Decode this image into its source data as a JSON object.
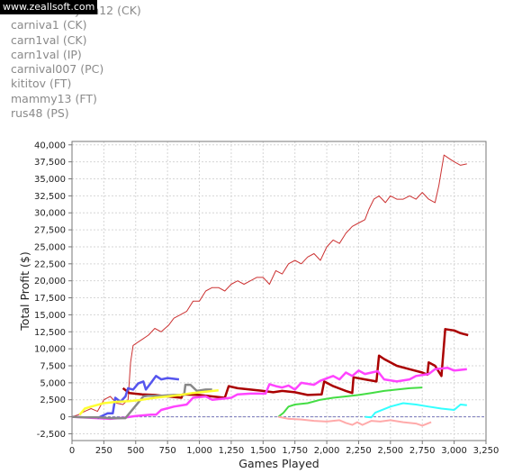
{
  "watermark": "www.zeallsoft.com",
  "legend": [
    "mike Donnlydm12 (CK)",
    "carniva1 (CK)",
    "carn1val (CK)",
    "carn1val (IP)",
    "carnival007 (PC)",
    "kititov (FT)",
    "mammy13 (FT)",
    "rus48 (PS)"
  ],
  "chart_data": {
    "type": "line",
    "title": "",
    "xlabel": "Games Played",
    "ylabel": "Total Profit ($)",
    "xlim": [
      0,
      3250
    ],
    "ylim": [
      -3500,
      40500
    ],
    "xticks": [
      "0",
      "250",
      "500",
      "750",
      "1,000",
      "1,250",
      "1,500",
      "1,750",
      "2,000",
      "2,250",
      "2,500",
      "2,750",
      "3,000",
      "3,250"
    ],
    "yticks": [
      "-2,500",
      "0",
      "2,500",
      "5,000",
      "7,500",
      "10,000",
      "12,500",
      "15,000",
      "17,500",
      "20,000",
      "22,500",
      "25,000",
      "27,500",
      "30,000",
      "32,500",
      "35,000",
      "37,500",
      "40,000"
    ],
    "grid": true,
    "zero_line": true,
    "series": [
      {
        "color": "#cc3333",
        "width": 1,
        "points": [
          [
            0,
            0
          ],
          [
            50,
            300
          ],
          [
            100,
            800
          ],
          [
            150,
            1200
          ],
          [
            200,
            800
          ],
          [
            250,
            2500
          ],
          [
            300,
            3000
          ],
          [
            350,
            2000
          ],
          [
            400,
            1800
          ],
          [
            440,
            2500
          ],
          [
            460,
            8000
          ],
          [
            480,
            10500
          ],
          [
            520,
            11000
          ],
          [
            560,
            11500
          ],
          [
            600,
            12000
          ],
          [
            650,
            13000
          ],
          [
            700,
            12500
          ],
          [
            760,
            13500
          ],
          [
            800,
            14500
          ],
          [
            850,
            15000
          ],
          [
            900,
            15500
          ],
          [
            950,
            17000
          ],
          [
            1000,
            17000
          ],
          [
            1050,
            18500
          ],
          [
            1100,
            19000
          ],
          [
            1150,
            19000
          ],
          [
            1200,
            18500
          ],
          [
            1250,
            19500
          ],
          [
            1300,
            20000
          ],
          [
            1350,
            19500
          ],
          [
            1400,
            20000
          ],
          [
            1450,
            20500
          ],
          [
            1500,
            20500
          ],
          [
            1550,
            19500
          ],
          [
            1600,
            21500
          ],
          [
            1650,
            21000
          ],
          [
            1700,
            22500
          ],
          [
            1750,
            23000
          ],
          [
            1800,
            22500
          ],
          [
            1850,
            23500
          ],
          [
            1900,
            24000
          ],
          [
            1950,
            23000
          ],
          [
            2000,
            25000
          ],
          [
            2050,
            26000
          ],
          [
            2100,
            25500
          ],
          [
            2150,
            27000
          ],
          [
            2200,
            28000
          ],
          [
            2250,
            28500
          ],
          [
            2300,
            29000
          ],
          [
            2330,
            30500
          ],
          [
            2370,
            32000
          ],
          [
            2410,
            32500
          ],
          [
            2460,
            31500
          ],
          [
            2500,
            32500
          ],
          [
            2550,
            32000
          ],
          [
            2600,
            32000
          ],
          [
            2650,
            32500
          ],
          [
            2700,
            32000
          ],
          [
            2750,
            33000
          ],
          [
            2800,
            32000
          ],
          [
            2850,
            31500
          ],
          [
            2880,
            34000
          ],
          [
            2920,
            38500
          ],
          [
            2960,
            38000
          ],
          [
            3000,
            37500
          ],
          [
            3050,
            37000
          ],
          [
            3100,
            37200
          ]
        ]
      },
      {
        "color": "#aa0000",
        "width": 2.5,
        "points": [
          [
            400,
            4200
          ],
          [
            450,
            3500
          ],
          [
            550,
            3300
          ],
          [
            650,
            3200
          ],
          [
            750,
            3000
          ],
          [
            860,
            2800
          ],
          [
            870,
            3300
          ],
          [
            1000,
            3200
          ],
          [
            1100,
            3000
          ],
          [
            1200,
            2800
          ],
          [
            1230,
            4500
          ],
          [
            1300,
            4200
          ],
          [
            1400,
            4000
          ],
          [
            1500,
            3800
          ],
          [
            1580,
            3600
          ],
          [
            1650,
            3800
          ],
          [
            1750,
            3600
          ],
          [
            1850,
            3200
          ],
          [
            1960,
            3300
          ],
          [
            1980,
            5200
          ],
          [
            2050,
            4500
          ],
          [
            2150,
            3800
          ],
          [
            2200,
            3500
          ],
          [
            2210,
            5800
          ],
          [
            2300,
            5500
          ],
          [
            2390,
            5200
          ],
          [
            2410,
            9000
          ],
          [
            2450,
            8500
          ],
          [
            2550,
            7500
          ],
          [
            2650,
            7000
          ],
          [
            2750,
            6500
          ],
          [
            2790,
            6200
          ],
          [
            2800,
            8000
          ],
          [
            2850,
            7500
          ],
          [
            2900,
            6000
          ],
          [
            2930,
            12900
          ],
          [
            3000,
            12700
          ],
          [
            3050,
            12300
          ],
          [
            3110,
            12000
          ]
        ]
      },
      {
        "color": "#ff44ff",
        "width": 2.5,
        "points": [
          [
            0,
            0
          ],
          [
            200,
            -200
          ],
          [
            300,
            -300
          ],
          [
            400,
            -150
          ],
          [
            500,
            100
          ],
          [
            620,
            300
          ],
          [
            660,
            300
          ],
          [
            700,
            1000
          ],
          [
            800,
            1500
          ],
          [
            900,
            1800
          ],
          [
            950,
            2800
          ],
          [
            1050,
            3000
          ],
          [
            1100,
            2500
          ],
          [
            1250,
            2800
          ],
          [
            1300,
            3300
          ],
          [
            1400,
            3400
          ],
          [
            1520,
            3400
          ],
          [
            1550,
            4800
          ],
          [
            1600,
            4500
          ],
          [
            1650,
            4300
          ],
          [
            1700,
            4600
          ],
          [
            1750,
            4000
          ],
          [
            1800,
            5000
          ],
          [
            1900,
            4700
          ],
          [
            1950,
            5300
          ],
          [
            2050,
            6000
          ],
          [
            2100,
            5500
          ],
          [
            2150,
            6500
          ],
          [
            2200,
            6000
          ],
          [
            2250,
            6800
          ],
          [
            2300,
            6300
          ],
          [
            2400,
            6700
          ],
          [
            2450,
            5500
          ],
          [
            2550,
            5200
          ],
          [
            2650,
            5500
          ],
          [
            2700,
            6000
          ],
          [
            2800,
            6300
          ],
          [
            2850,
            7000
          ],
          [
            2950,
            7200
          ],
          [
            3000,
            6800
          ],
          [
            3100,
            7000
          ]
        ]
      },
      {
        "color": "#44dd44",
        "width": 2,
        "points": [
          [
            1620,
            0
          ],
          [
            1660,
            600
          ],
          [
            1700,
            1500
          ],
          [
            1750,
            1800
          ],
          [
            1850,
            2000
          ],
          [
            1950,
            2500
          ],
          [
            2050,
            2800
          ],
          [
            2150,
            3000
          ],
          [
            2250,
            3200
          ],
          [
            2350,
            3500
          ],
          [
            2450,
            3800
          ],
          [
            2550,
            4000
          ],
          [
            2650,
            4200
          ],
          [
            2750,
            4300
          ]
        ]
      },
      {
        "color": "#33ffff",
        "width": 2,
        "points": [
          [
            2300,
            0
          ],
          [
            2350,
            -100
          ],
          [
            2380,
            600
          ],
          [
            2420,
            900
          ],
          [
            2500,
            1500
          ],
          [
            2600,
            2000
          ],
          [
            2700,
            1800
          ],
          [
            2800,
            1500
          ],
          [
            2900,
            1200
          ],
          [
            3000,
            1000
          ],
          [
            3050,
            1800
          ],
          [
            3100,
            1700
          ]
        ]
      },
      {
        "color": "#ffaaaa",
        "width": 2,
        "points": [
          [
            1620,
            0
          ],
          [
            1700,
            -300
          ],
          [
            1800,
            -400
          ],
          [
            1900,
            -600
          ],
          [
            2000,
            -700
          ],
          [
            2100,
            -500
          ],
          [
            2150,
            -900
          ],
          [
            2200,
            -1200
          ],
          [
            2240,
            -800
          ],
          [
            2280,
            -1200
          ],
          [
            2350,
            -600
          ],
          [
            2420,
            -700
          ],
          [
            2500,
            -500
          ],
          [
            2600,
            -800
          ],
          [
            2700,
            -1000
          ],
          [
            2750,
            -1300
          ],
          [
            2820,
            -800
          ]
        ]
      },
      {
        "color": "#5555ee",
        "width": 2.5,
        "points": [
          [
            200,
            -200
          ],
          [
            280,
            500
          ],
          [
            320,
            500
          ],
          [
            340,
            2800
          ],
          [
            380,
            2200
          ],
          [
            420,
            3000
          ],
          [
            440,
            4200
          ],
          [
            480,
            4000
          ],
          [
            520,
            4900
          ],
          [
            560,
            5200
          ],
          [
            580,
            4000
          ],
          [
            620,
            5000
          ],
          [
            660,
            6000
          ],
          [
            700,
            5500
          ],
          [
            750,
            5700
          ],
          [
            840,
            5500
          ]
        ]
      },
      {
        "color": "#888888",
        "width": 2.5,
        "points": [
          [
            0,
            0
          ],
          [
            100,
            -100
          ],
          [
            200,
            -100
          ],
          [
            300,
            -200
          ],
          [
            350,
            -200
          ],
          [
            400,
            -200
          ],
          [
            420,
            -200
          ],
          [
            560,
            3000
          ],
          [
            600,
            3100
          ],
          [
            700,
            3100
          ],
          [
            800,
            3200
          ],
          [
            880,
            3200
          ],
          [
            890,
            4700
          ],
          [
            930,
            4700
          ],
          [
            980,
            3800
          ],
          [
            1050,
            4000
          ],
          [
            1100,
            4000
          ]
        ]
      },
      {
        "color": "#ffff33",
        "width": 2.5,
        "points": [
          [
            60,
            300
          ],
          [
            100,
            1200
          ],
          [
            150,
            1500
          ],
          [
            250,
            2000
          ],
          [
            350,
            2200
          ],
          [
            450,
            2300
          ],
          [
            550,
            2500
          ],
          [
            650,
            2800
          ],
          [
            750,
            3000
          ],
          [
            850,
            3200
          ],
          [
            950,
            3500
          ],
          [
            1050,
            3700
          ],
          [
            1150,
            3900
          ]
        ]
      }
    ]
  }
}
